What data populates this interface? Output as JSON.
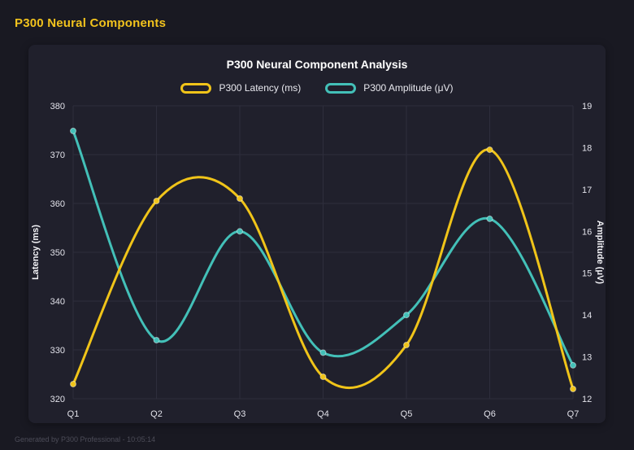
{
  "page": {
    "title": "P300 Neural Components",
    "footer": "Generated by P300 Professional - 10:05:14"
  },
  "colors": {
    "page_bg": "#191922",
    "card_bg": "#20202c",
    "grid": "#2e2e3c",
    "tick_text": "#e2e2ea",
    "axis_title_text": "#f2f2f6",
    "accent_title": "#f2c31d"
  },
  "chart_data": {
    "type": "line",
    "title": "P300 Neural Component Analysis",
    "categories": [
      "Q1",
      "Q2",
      "Q3",
      "Q4",
      "Q5",
      "Q6",
      "Q7"
    ],
    "series": [
      {
        "name": "P300 Latency (ms)",
        "axis": "left",
        "color": "#f0c419",
        "values": [
          323,
          360.5,
          361,
          324.5,
          331,
          371,
          322
        ]
      },
      {
        "name": "P300 Amplitude (μV)",
        "axis": "right",
        "color": "#43c0b8",
        "values": [
          18.4,
          13.4,
          16.0,
          13.1,
          14.0,
          16.3,
          12.8
        ]
      }
    ],
    "left_axis": {
      "label": "Latency (ms)",
      "min": 320,
      "max": 380,
      "ticks": [
        320,
        330,
        340,
        350,
        360,
        370,
        380
      ]
    },
    "right_axis": {
      "label": "Amplitude (μV)",
      "min": 12,
      "max": 19,
      "ticks": [
        12,
        13,
        14,
        15,
        16,
        17,
        18,
        19
      ]
    },
    "grid": true,
    "legend_position": "top",
    "curve": "smooth"
  }
}
